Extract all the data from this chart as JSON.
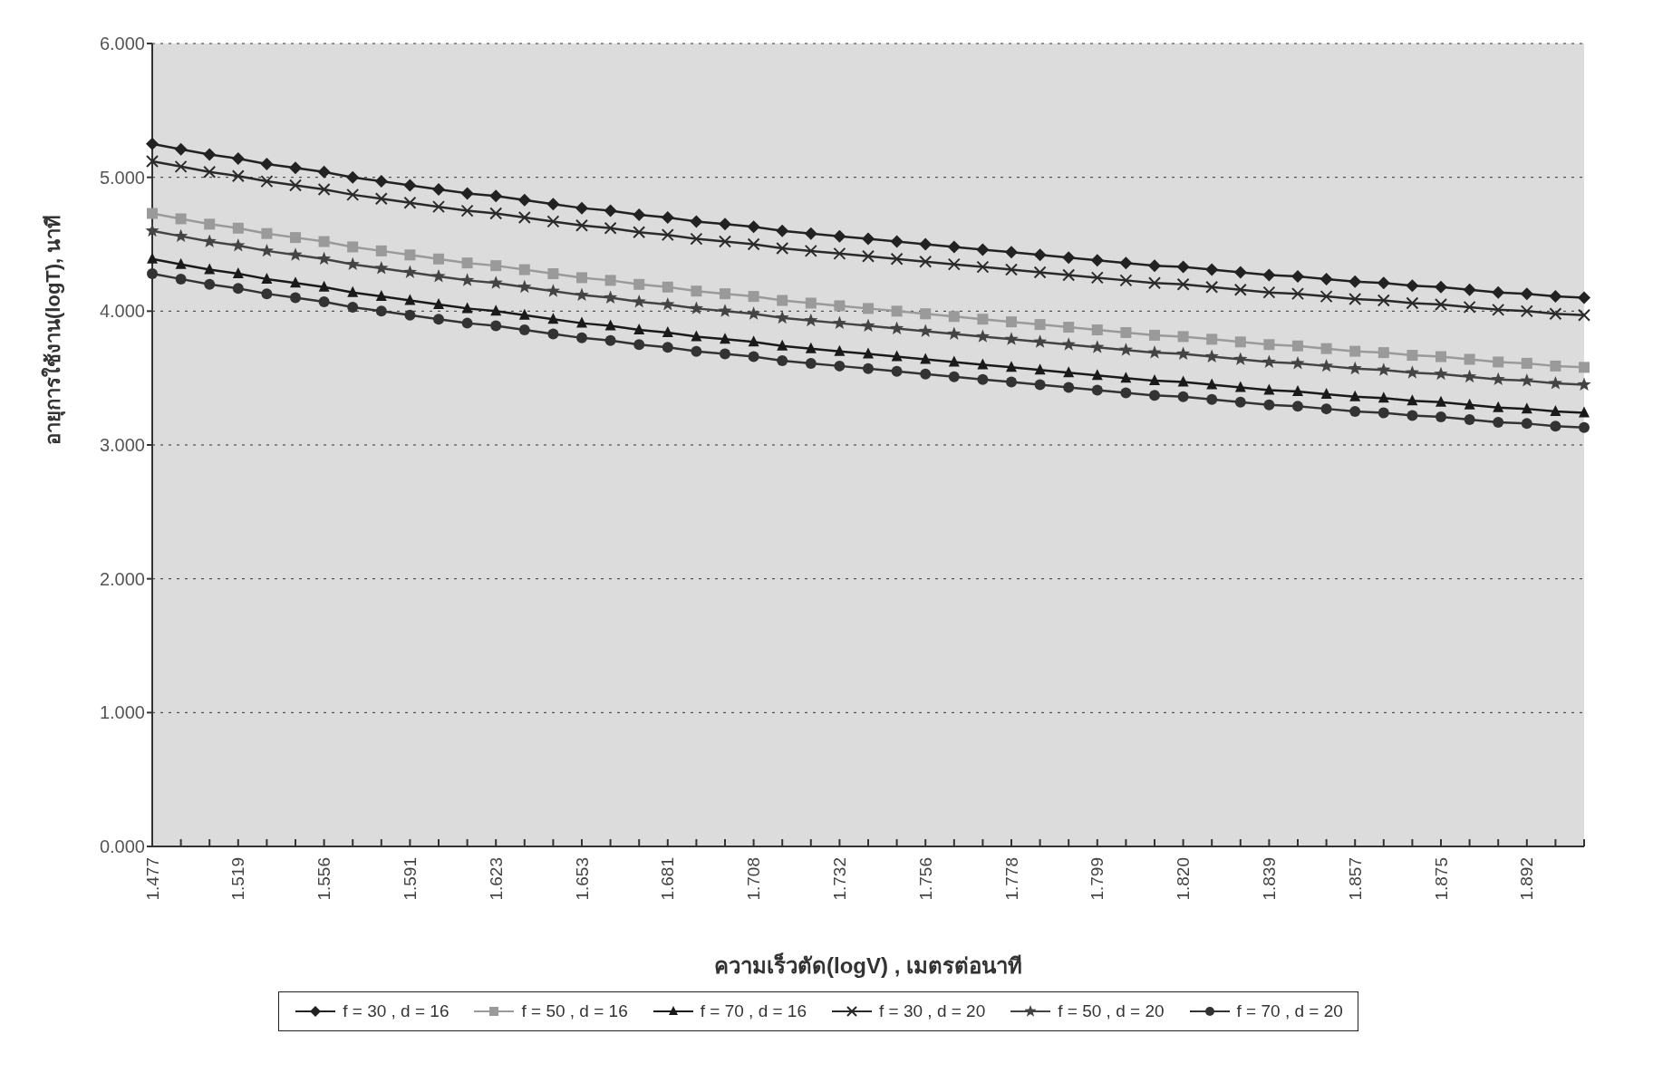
{
  "chart_data": {
    "type": "line",
    "xlabel": "ความเร็วตัด(logV) , เมตรต่อนาที",
    "ylabel": "อายุการใช้งาน(logT), นาที",
    "categories": [
      "1.477",
      null,
      null,
      "1.519",
      null,
      null,
      "1.556",
      null,
      null,
      "1.591",
      null,
      null,
      "1.623",
      null,
      null,
      "1.653",
      null,
      null,
      "1.681",
      null,
      null,
      "1.708",
      null,
      null,
      "1.732",
      null,
      null,
      "1.756",
      null,
      null,
      "1.778",
      null,
      null,
      "1.799",
      null,
      null,
      "1.820",
      null,
      null,
      "1.839",
      null,
      null,
      "1.857",
      null,
      null,
      "1.875",
      null,
      null,
      "1.892",
      null,
      null
    ],
    "ylim": [
      0,
      6
    ],
    "yticks": [
      {
        "value": 0,
        "label": "0.000"
      },
      {
        "value": 1,
        "label": "1.000"
      },
      {
        "value": 2,
        "label": "2.000"
      },
      {
        "value": 3,
        "label": "3.000"
      },
      {
        "value": 4,
        "label": "4.000"
      },
      {
        "value": 5,
        "label": "5.000"
      },
      {
        "value": 6,
        "label": "6.000"
      }
    ],
    "grid": "y",
    "legend": "bottom",
    "line_style": "solid",
    "series": [
      {
        "name": "f = 30 , d = 16",
        "color": "#222222",
        "marker": "diamond",
        "values": [
          5.25,
          5.21,
          5.17,
          5.14,
          5.1,
          5.07,
          5.04,
          5.0,
          4.97,
          4.94,
          4.91,
          4.88,
          4.86,
          4.83,
          4.8,
          4.77,
          4.75,
          4.72,
          4.7,
          4.67,
          4.65,
          4.63,
          4.6,
          4.58,
          4.56,
          4.54,
          4.52,
          4.5,
          4.48,
          4.46,
          4.44,
          4.42,
          4.4,
          4.38,
          4.36,
          4.34,
          4.33,
          4.31,
          4.29,
          4.27,
          4.26,
          4.24,
          4.22,
          4.21,
          4.19,
          4.18,
          4.16,
          4.14,
          4.13,
          4.11,
          4.1
        ]
      },
      {
        "name": "f = 50 , d = 16",
        "color": "#9a9a9a",
        "marker": "square",
        "values": [
          4.73,
          4.69,
          4.65,
          4.62,
          4.58,
          4.55,
          4.52,
          4.48,
          4.45,
          4.42,
          4.39,
          4.36,
          4.34,
          4.31,
          4.28,
          4.25,
          4.23,
          4.2,
          4.18,
          4.15,
          4.13,
          4.11,
          4.08,
          4.06,
          4.04,
          4.02,
          4.0,
          3.98,
          3.96,
          3.94,
          3.92,
          3.9,
          3.88,
          3.86,
          3.84,
          3.82,
          3.81,
          3.79,
          3.77,
          3.75,
          3.74,
          3.72,
          3.7,
          3.69,
          3.67,
          3.66,
          3.64,
          3.62,
          3.61,
          3.59,
          3.58
        ]
      },
      {
        "name": "f = 70 , d = 16",
        "color": "#1a1a1a",
        "marker": "triangle",
        "values": [
          4.39,
          4.35,
          4.31,
          4.28,
          4.24,
          4.21,
          4.18,
          4.14,
          4.11,
          4.08,
          4.05,
          4.02,
          4.0,
          3.97,
          3.94,
          3.91,
          3.89,
          3.86,
          3.84,
          3.81,
          3.79,
          3.77,
          3.74,
          3.72,
          3.7,
          3.68,
          3.66,
          3.64,
          3.62,
          3.6,
          3.58,
          3.56,
          3.54,
          3.52,
          3.5,
          3.48,
          3.47,
          3.45,
          3.43,
          3.41,
          3.4,
          3.38,
          3.36,
          3.35,
          3.33,
          3.32,
          3.3,
          3.28,
          3.27,
          3.25,
          3.24
        ]
      },
      {
        "name": "f = 30 , d = 20",
        "color": "#2a2a2a",
        "marker": "cross",
        "values": [
          5.12,
          5.08,
          5.04,
          5.01,
          4.97,
          4.94,
          4.91,
          4.87,
          4.84,
          4.81,
          4.78,
          4.75,
          4.73,
          4.7,
          4.67,
          4.64,
          4.62,
          4.59,
          4.57,
          4.54,
          4.52,
          4.5,
          4.47,
          4.45,
          4.43,
          4.41,
          4.39,
          4.37,
          4.35,
          4.33,
          4.31,
          4.29,
          4.27,
          4.25,
          4.23,
          4.21,
          4.2,
          4.18,
          4.16,
          4.14,
          4.13,
          4.11,
          4.09,
          4.08,
          4.06,
          4.05,
          4.03,
          4.01,
          4.0,
          3.98,
          3.97
        ]
      },
      {
        "name": "f = 50 , d = 20",
        "color": "#444444",
        "marker": "star",
        "values": [
          4.6,
          4.56,
          4.52,
          4.49,
          4.45,
          4.42,
          4.39,
          4.35,
          4.32,
          4.29,
          4.26,
          4.23,
          4.21,
          4.18,
          4.15,
          4.12,
          4.1,
          4.07,
          4.05,
          4.02,
          4.0,
          3.98,
          3.95,
          3.93,
          3.91,
          3.89,
          3.87,
          3.85,
          3.83,
          3.81,
          3.79,
          3.77,
          3.75,
          3.73,
          3.71,
          3.69,
          3.68,
          3.66,
          3.64,
          3.62,
          3.61,
          3.59,
          3.57,
          3.56,
          3.54,
          3.53,
          3.51,
          3.49,
          3.48,
          3.46,
          3.45
        ]
      },
      {
        "name": "f = 70 , d = 20",
        "color": "#333333",
        "marker": "circle",
        "values": [
          4.28,
          4.24,
          4.2,
          4.17,
          4.13,
          4.1,
          4.07,
          4.03,
          4.0,
          3.97,
          3.94,
          3.91,
          3.89,
          3.86,
          3.83,
          3.8,
          3.78,
          3.75,
          3.73,
          3.7,
          3.68,
          3.66,
          3.63,
          3.61,
          3.59,
          3.57,
          3.55,
          3.53,
          3.51,
          3.49,
          3.47,
          3.45,
          3.43,
          3.41,
          3.39,
          3.37,
          3.36,
          3.34,
          3.32,
          3.3,
          3.29,
          3.27,
          3.25,
          3.24,
          3.22,
          3.21,
          3.19,
          3.17,
          3.16,
          3.14,
          3.13
        ]
      }
    ]
  }
}
